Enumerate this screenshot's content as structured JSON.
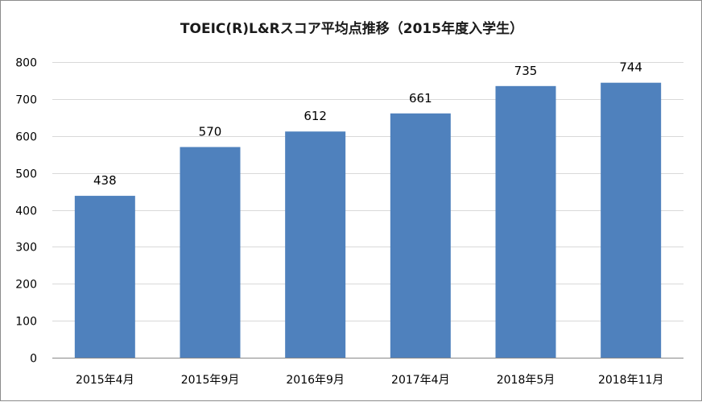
{
  "chart_data": {
    "type": "bar",
    "title": "TOEIC(R)L&Rスコア平均点推移（2015年度入学生）",
    "xlabel": "",
    "ylabel": "",
    "categories": [
      "2015年4月",
      "2015年9月",
      "2016年9月",
      "2017年4月",
      "2018年5月",
      "2018年11月"
    ],
    "values": [
      438,
      570,
      612,
      661,
      735,
      744
    ],
    "ylim": [
      0,
      800
    ],
    "yticks": [
      0,
      100,
      200,
      300,
      400,
      500,
      600,
      700,
      800
    ],
    "grid": true,
    "legend": "none",
    "colors": {
      "bar": "#4f81bd",
      "grid": "#d9d9d9",
      "axis": "#888888"
    }
  }
}
